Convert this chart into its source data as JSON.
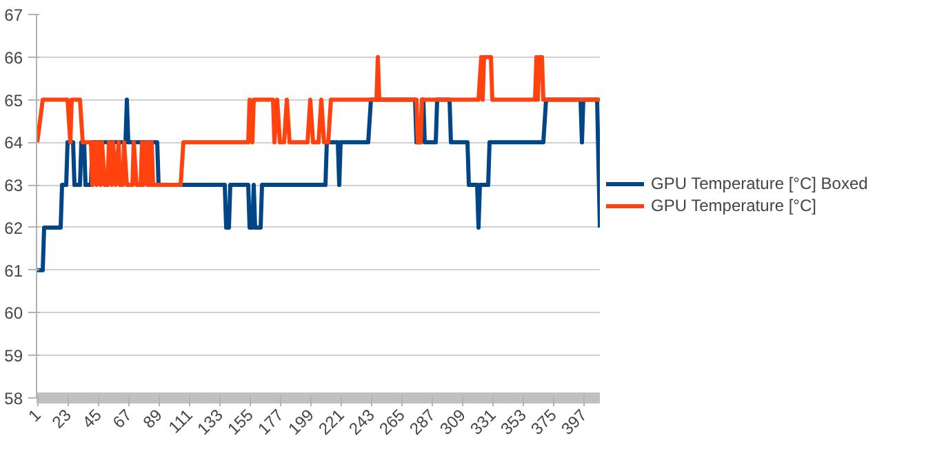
{
  "chart_data": {
    "type": "line",
    "series": [
      {
        "name": "GPU Temperature [°C] Boxed",
        "color": "#004586",
        "x": [
          1,
          5,
          6,
          18,
          19,
          22,
          23,
          27,
          28,
          32,
          33,
          35,
          36,
          40,
          41,
          65,
          66,
          67,
          88,
          89,
          137,
          138,
          140,
          141,
          154,
          155,
          157,
          158,
          159,
          163,
          164,
          210,
          211,
          219,
          220,
          221,
          241,
          243,
          275,
          276,
          279,
          280,
          281,
          282,
          290,
          291,
          300,
          301,
          313,
          314,
          320,
          321,
          322,
          328,
          329,
          368,
          370,
          395,
          396,
          397,
          407,
          409
        ],
        "values": [
          61,
          61,
          62,
          62,
          63,
          63,
          64,
          64,
          63,
          63,
          64,
          64,
          63,
          63,
          64,
          64,
          65,
          64,
          64,
          63,
          63,
          62,
          62,
          63,
          63,
          62,
          62,
          63,
          62,
          62,
          63,
          63,
          64,
          64,
          63,
          64,
          64,
          65,
          65,
          64,
          64,
          65,
          65,
          64,
          64,
          65,
          65,
          64,
          64,
          63,
          63,
          62,
          63,
          63,
          64,
          64,
          65,
          65,
          64,
          65,
          65,
          62
        ]
      },
      {
        "name": "GPU Temperature [°C]",
        "color": "#ff420e",
        "x": [
          1,
          5,
          23,
          25,
          26,
          32,
          34,
          40,
          41,
          42,
          44,
          45,
          47,
          48,
          50,
          52,
          53,
          55,
          56,
          58,
          60,
          61,
          63,
          64,
          66,
          70,
          71,
          73,
          76,
          77,
          78,
          80,
          81,
          82,
          83,
          84,
          85,
          105,
          107,
          154,
          155,
          157,
          158,
          172,
          173,
          175,
          177,
          180,
          182,
          184,
          197,
          199,
          201,
          205,
          207,
          209,
          212,
          214,
          247,
          248,
          249,
          276,
          277,
          279,
          280,
          321,
          323,
          324,
          325,
          330,
          331,
          362,
          363,
          364,
          365,
          367,
          368,
          409
        ],
        "values": [
          64,
          65,
          65,
          64,
          65,
          65,
          64,
          64,
          63,
          64,
          63,
          64,
          63,
          64,
          63,
          63,
          64,
          63,
          64,
          63,
          64,
          63,
          63,
          64,
          63,
          63,
          64,
          63,
          63,
          64,
          63,
          64,
          63,
          64,
          63,
          64,
          63,
          63,
          64,
          64,
          65,
          64,
          65,
          65,
          64,
          65,
          64,
          64,
          65,
          64,
          64,
          65,
          64,
          64,
          65,
          64,
          64,
          65,
          65,
          66,
          65,
          65,
          64,
          64,
          65,
          65,
          66,
          65,
          66,
          66,
          65,
          65,
          66,
          65,
          66,
          66,
          65,
          65
        ]
      }
    ],
    "xlim": [
      0.5,
      409.5
    ],
    "xticks": [
      1,
      23,
      45,
      67,
      89,
      111,
      133,
      155,
      177,
      199,
      221,
      243,
      265,
      287,
      309,
      331,
      353,
      375,
      397
    ],
    "ylim": [
      58,
      67
    ],
    "yticks": [
      58,
      59,
      60,
      61,
      62,
      63,
      64,
      65,
      66,
      67
    ],
    "grid": "y",
    "legend": "right",
    "marker": "none",
    "line_style": "solid"
  }
}
